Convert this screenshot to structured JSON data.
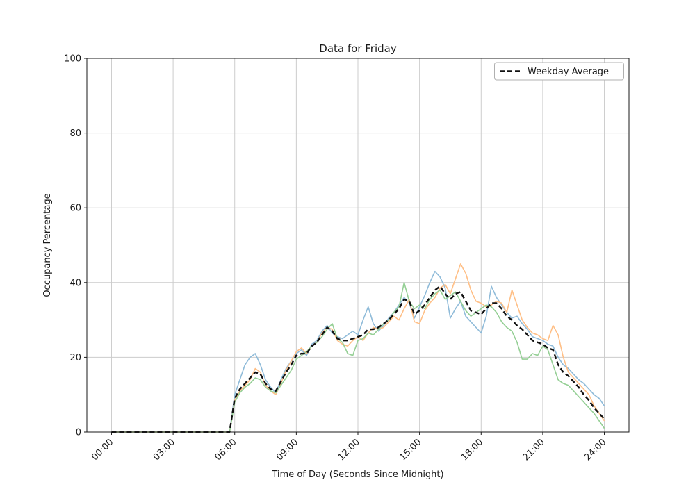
{
  "chart_data": {
    "type": "line",
    "title": "Data for Friday",
    "xlabel": "Time of Day (Seconds Since Midnight)",
    "ylabel": "Occupancy Percentage",
    "ylim": [
      0,
      100
    ],
    "xlim_seconds": [
      0,
      86400
    ],
    "grid": true,
    "y_ticks": [
      0,
      20,
      40,
      60,
      80,
      100
    ],
    "x_ticks_seconds": [
      0,
      10800,
      21600,
      32400,
      43200,
      54000,
      64800,
      75600,
      86400
    ],
    "x_tick_labels": [
      "00:00",
      "03:00",
      "06:00",
      "09:00",
      "12:00",
      "15:00",
      "18:00",
      "21:00",
      "24:00"
    ],
    "legend": {
      "position": "upper right",
      "entries": [
        {
          "label": "Weekday Average",
          "color": "#111111",
          "dash": true
        }
      ]
    },
    "x_seconds": [
      0,
      900,
      1800,
      2700,
      3600,
      4500,
      5400,
      6300,
      7200,
      8100,
      9000,
      9900,
      10800,
      11700,
      12600,
      13500,
      14400,
      15300,
      16200,
      17100,
      18000,
      18900,
      19800,
      20700,
      21600,
      22500,
      23400,
      24300,
      25200,
      26100,
      27000,
      27900,
      28800,
      29700,
      30600,
      31500,
      32400,
      33300,
      34200,
      35100,
      36000,
      36900,
      37800,
      38700,
      39600,
      40500,
      41400,
      42300,
      43200,
      44100,
      45000,
      45900,
      46800,
      47700,
      48600,
      49500,
      50400,
      51300,
      52200,
      53100,
      54000,
      54900,
      55800,
      56700,
      57600,
      58500,
      59400,
      60300,
      61200,
      62100,
      63000,
      63900,
      64800,
      65700,
      66600,
      67500,
      68400,
      69300,
      70200,
      71100,
      72000,
      72900,
      73800,
      74700,
      75600,
      76500,
      77400,
      78300,
      79200,
      80100,
      81000,
      81900,
      82800,
      83700,
      84600,
      85500,
      86400
    ],
    "series": [
      {
        "name": "day-series-1",
        "color": "#8FBBD9",
        "width": 1.6,
        "values": [
          0,
          0,
          0,
          0,
          0,
          0,
          0,
          0,
          0,
          0,
          0,
          0,
          0,
          0,
          0,
          0,
          0,
          0,
          0,
          0,
          0,
          0,
          0,
          0,
          10,
          14,
          18,
          20,
          21,
          18,
          14,
          12,
          10.5,
          14,
          17,
          19,
          21,
          22,
          20.5,
          23.5,
          24.5,
          27,
          28.5,
          26.5,
          25.5,
          25,
          26,
          27,
          26,
          30,
          33.5,
          29,
          27,
          28.5,
          30.5,
          32,
          34,
          36,
          34.5,
          30.5,
          33.5,
          36.5,
          40,
          43,
          41.5,
          38.5,
          30.5,
          33,
          35,
          31,
          29.5,
          28,
          26.5,
          31,
          39,
          36,
          34,
          32,
          30.5,
          31,
          29,
          27.5,
          25.5,
          25,
          24.5,
          23.5,
          23,
          20,
          18,
          17,
          15.5,
          14,
          13,
          11.5,
          10,
          9,
          7
        ]
      },
      {
        "name": "day-series-2",
        "color": "#FFBF86",
        "width": 1.6,
        "values": [
          0,
          0,
          0,
          0,
          0,
          0,
          0,
          0,
          0,
          0,
          0,
          0,
          0,
          0,
          0,
          0,
          0,
          0,
          0,
          0,
          0,
          0,
          0,
          0,
          8.5,
          11,
          12.5,
          14,
          17,
          16,
          12.5,
          11,
          10,
          13,
          16.5,
          19,
          21.5,
          22.5,
          21,
          23,
          24,
          26.5,
          28,
          27.5,
          24.5,
          23.5,
          23,
          24.5,
          25.5,
          24.5,
          26.5,
          28,
          27.5,
          28,
          29.5,
          31,
          30,
          33,
          35.5,
          29.5,
          29,
          32.5,
          34.5,
          36,
          38.5,
          39.5,
          37,
          41,
          45,
          42.5,
          38,
          35,
          34.5,
          33.5,
          34,
          35,
          34.5,
          32,
          38,
          34,
          30,
          28,
          26.5,
          26,
          25,
          24.5,
          28.5,
          26,
          20,
          16,
          14.5,
          13,
          11.5,
          10,
          7,
          5,
          3
        ]
      },
      {
        "name": "day-series-3",
        "color": "#95CF95",
        "width": 1.6,
        "values": [
          0,
          0,
          0,
          0,
          0,
          0,
          0,
          0,
          0,
          0,
          0,
          0,
          0,
          0,
          0,
          0,
          0,
          0,
          0,
          0,
          0,
          0,
          0,
          0,
          8,
          10.5,
          12,
          13,
          14.5,
          14,
          12,
          11,
          10.5,
          12.5,
          14.5,
          16.5,
          19.5,
          20.5,
          21.5,
          23,
          24,
          25.5,
          27.5,
          29,
          25,
          24,
          21,
          20.5,
          24.5,
          25,
          26.5,
          26,
          27.5,
          29,
          30,
          32,
          33.5,
          40,
          35,
          33,
          34,
          33,
          35.5,
          37,
          38,
          35.5,
          36.5,
          37.5,
          35,
          32.5,
          31,
          32,
          33,
          34,
          33.5,
          32,
          29.5,
          28,
          27,
          24,
          19.5,
          19.5,
          21,
          20.5,
          23,
          22,
          18,
          14,
          13,
          12.5,
          11,
          9.5,
          8,
          6.5,
          5,
          3,
          1
        ]
      },
      {
        "name": "Weekday Average",
        "color": "#111111",
        "width": 2.4,
        "dash": true,
        "values": [
          0,
          0,
          0,
          0,
          0,
          0,
          0,
          0,
          0,
          0,
          0,
          0,
          0,
          0,
          0,
          0,
          0,
          0,
          0,
          0,
          0,
          0,
          0,
          0,
          9,
          11.5,
          13,
          14.5,
          16,
          15.5,
          13,
          11.5,
          11,
          13.5,
          16,
          18,
          20.5,
          21,
          21,
          23,
          24,
          26,
          28,
          27,
          25,
          24.5,
          24.5,
          25,
          25.5,
          26,
          27.5,
          27.5,
          28,
          29,
          30,
          31.5,
          33,
          35.5,
          35,
          31.5,
          32.5,
          34,
          36,
          38,
          39,
          37,
          35.5,
          37,
          37.5,
          35,
          32.5,
          32,
          31.5,
          33,
          34.5,
          34.5,
          33,
          31,
          30,
          28.5,
          27.5,
          26,
          24.5,
          24,
          23.5,
          22.5,
          22,
          18,
          16,
          15,
          13.5,
          12,
          10,
          8.5,
          6.5,
          5,
          3.5
        ]
      }
    ]
  }
}
